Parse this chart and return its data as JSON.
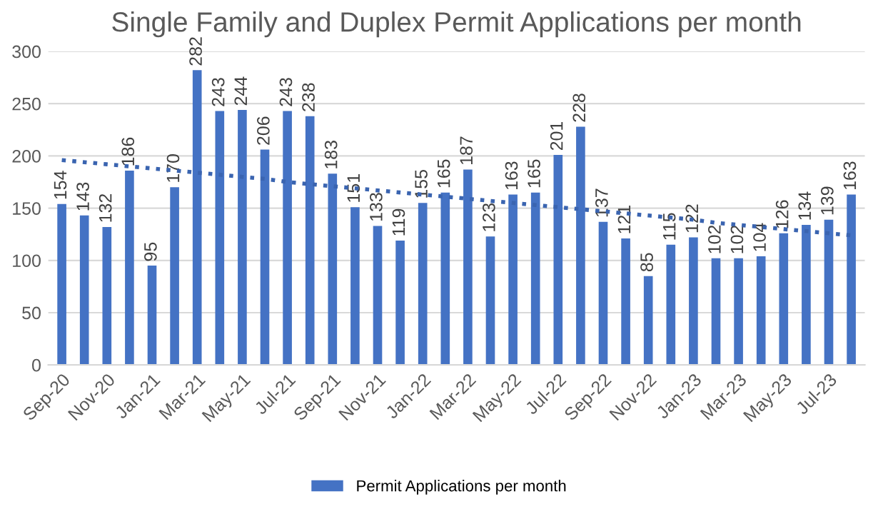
{
  "chart_data": {
    "type": "bar",
    "title": "Single Family and Duplex Permit Applications per month",
    "categories": [
      "Sep-20",
      null,
      "Nov-20",
      null,
      "Jan-21",
      null,
      "Mar-21",
      null,
      "May-21",
      null,
      "Jul-21",
      null,
      "Sep-21",
      null,
      "Nov-21",
      null,
      "Jan-22",
      null,
      "Mar-22",
      null,
      "May-22",
      null,
      "Jul-22",
      null,
      "Sep-22",
      null,
      "Nov-22",
      null,
      "Jan-23",
      null,
      "Mar-23",
      null,
      "May-23",
      null,
      "Jul-23",
      null
    ],
    "series": [
      {
        "name": "Permit Applications per month",
        "color": "#4472c4",
        "values": [
          154,
          143,
          132,
          186,
          95,
          170,
          282,
          243,
          244,
          206,
          243,
          238,
          183,
          151,
          133,
          119,
          155,
          165,
          187,
          123,
          163,
          165,
          201,
          228,
          137,
          121,
          85,
          115,
          122,
          102,
          102,
          104,
          126,
          134,
          139,
          163
        ],
        "value_labels": [
          "154",
          "143",
          "132",
          "186",
          "95",
          "170",
          "282",
          "243",
          "244",
          "206",
          "243",
          "238",
          "183",
          "151",
          "133",
          "119",
          "155",
          "165",
          "187",
          "123",
          "163",
          "165",
          "201",
          "228",
          "137",
          "121",
          "85",
          "115",
          "122",
          "102",
          "102",
          "104",
          "126",
          "134",
          "139",
          "163"
        ]
      },
      {
        "type": "line",
        "color": "#3a64b0",
        "line_style": "dotted",
        "values": [
          196,
          194,
          192,
          190,
          188,
          186,
          184,
          182,
          180,
          178,
          175,
          173,
          171,
          169,
          167,
          165,
          163,
          161,
          159,
          157,
          155,
          153,
          151,
          149,
          147,
          145,
          143,
          141,
          139,
          136,
          134,
          132,
          130,
          128,
          126,
          124
        ]
      }
    ],
    "ylim": [
      0,
      300
    ],
    "yticks": [
      0,
      50,
      100,
      150,
      200,
      250,
      300
    ],
    "grid": "y",
    "legend": "bottom"
  }
}
